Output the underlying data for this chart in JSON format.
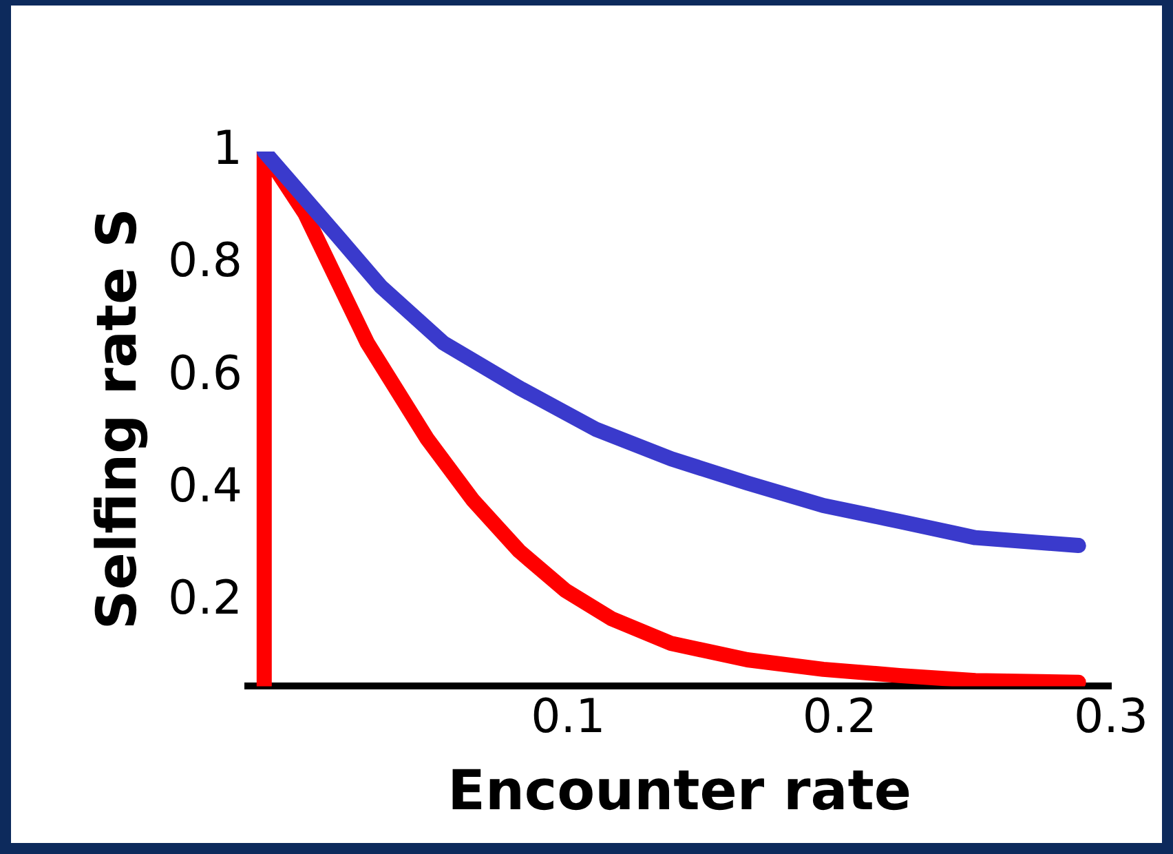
{
  "chart_data": {
    "type": "line",
    "xlabel": "Encounter rate",
    "ylabel": "Selfing rate S",
    "xlim": [
      -0.018,
      0.3
    ],
    "xticks": [
      0.1,
      0.2,
      0.3
    ],
    "ylim": [
      0.05,
      1
    ],
    "yticks": [
      0.2,
      0.4,
      0.6,
      0.8,
      1
    ],
    "grid": false,
    "legend": false,
    "marker": "none",
    "series": [
      {
        "color": "#3a3acc",
        "x": [
          -0.012,
          0.015,
          0.031,
          0.054,
          0.082,
          0.11,
          0.138,
          0.166,
          0.194,
          0.222,
          0.25,
          0.288
        ],
        "values": [
          1,
          0.85,
          0.76,
          0.66,
          0.58,
          0.507,
          0.454,
          0.411,
          0.371,
          0.343,
          0.314,
          0.3
        ]
      },
      {
        "color": "#ff0000",
        "x": [
          -0.012,
          -0.012,
          0.003,
          0.026,
          0.048,
          0.065,
          0.082,
          0.099,
          0.116,
          0.138,
          0.166,
          0.194,
          0.222,
          0.25,
          0.288
        ],
        "values": [
          0.05,
          1,
          0.89,
          0.66,
          0.49,
          0.38,
          0.29,
          0.22,
          0.17,
          0.126,
          0.097,
          0.08,
          0.069,
          0.06,
          0.057
        ]
      }
    ]
  }
}
